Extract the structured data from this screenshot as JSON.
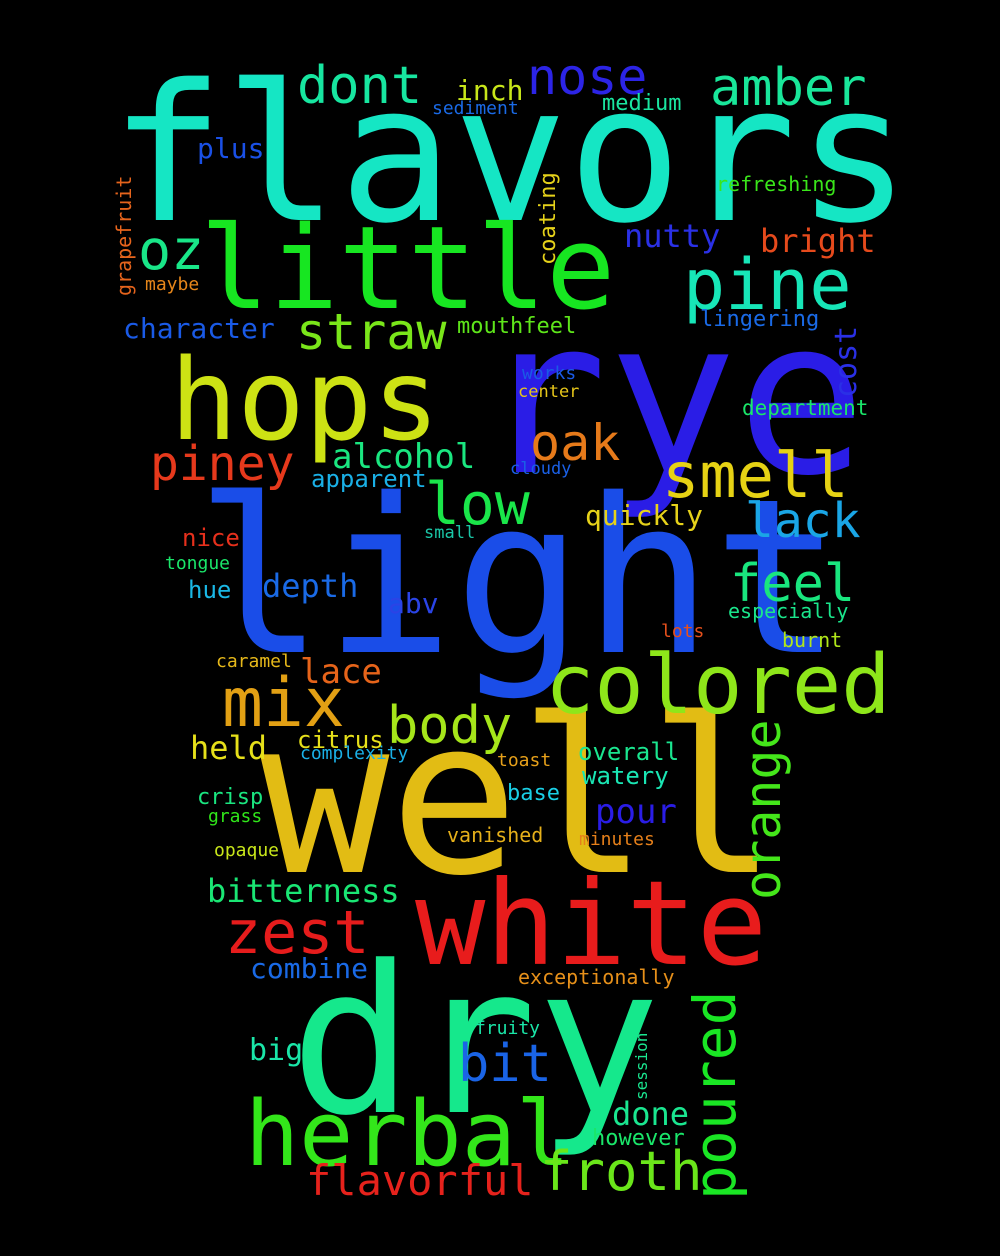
{
  "words": [
    {
      "id": "flavors",
      "text": "flavors",
      "color": "#15e6c4"
    },
    {
      "id": "rye",
      "text": "rye",
      "color": "#2a1de6"
    },
    {
      "id": "light",
      "text": "light",
      "color": "#1a4de8"
    },
    {
      "id": "well",
      "text": "well",
      "color": "#e2bc14"
    },
    {
      "id": "dry",
      "text": "dry",
      "color": "#15e88c"
    },
    {
      "id": "little",
      "text": "little",
      "color": "#17e621"
    },
    {
      "id": "white",
      "text": "white",
      "color": "#e81c1c"
    },
    {
      "id": "hops",
      "text": "hops",
      "color": "#cde214"
    },
    {
      "id": "herbal",
      "text": "herbal",
      "color": "#33e61a"
    },
    {
      "id": "colored",
      "text": "colored",
      "color": "#8ee61a"
    },
    {
      "id": "pine",
      "text": "pine",
      "color": "#17e6b8"
    },
    {
      "id": "mix",
      "text": "mix",
      "color": "#e2a014"
    },
    {
      "id": "nose",
      "text": "nose",
      "color": "#2c24e6"
    },
    {
      "id": "amber",
      "text": "amber",
      "color": "#19e69a"
    },
    {
      "id": "dont",
      "text": "dont",
      "color": "#17e6a0"
    },
    {
      "id": "oz",
      "text": "oz",
      "color": "#19e688"
    },
    {
      "id": "straw",
      "text": "straw",
      "color": "#7ae61a"
    },
    {
      "id": "smell",
      "text": "smell",
      "color": "#e6d214"
    },
    {
      "id": "piney",
      "text": "piney",
      "color": "#e6391c"
    },
    {
      "id": "low",
      "text": "low",
      "color": "#1ae64a"
    },
    {
      "id": "oak",
      "text": "oak",
      "color": "#e67a1a"
    },
    {
      "id": "lack",
      "text": "lack",
      "color": "#1aa6e6"
    },
    {
      "id": "feel",
      "text": "feel",
      "color": "#19e67e"
    },
    {
      "id": "body",
      "text": "body",
      "color": "#a6e61a"
    },
    {
      "id": "zest",
      "text": "zest",
      "color": "#e61c1c"
    },
    {
      "id": "bit",
      "text": "bit",
      "color": "#1a64e6"
    },
    {
      "id": "froth",
      "text": "froth",
      "color": "#6ae61a"
    },
    {
      "id": "orange",
      "text": "orange",
      "color": "#44e61a"
    },
    {
      "id": "poured",
      "text": "poured",
      "color": "#1ae624"
    },
    {
      "id": "flavorful",
      "text": "flavorful",
      "color": "#e6221c"
    },
    {
      "id": "bitterness",
      "text": "bitterness",
      "color": "#1ae674"
    },
    {
      "id": "nutty",
      "text": "nutty",
      "color": "#2a30e6"
    },
    {
      "id": "bright",
      "text": "bright",
      "color": "#e64a1c"
    },
    {
      "id": "inch",
      "text": "inch",
      "color": "#c8e61a"
    },
    {
      "id": "medium",
      "text": "medium",
      "color": "#1ae6a0"
    },
    {
      "id": "sediment",
      "text": "sediment",
      "color": "#1a6ae6"
    },
    {
      "id": "plus",
      "text": "plus",
      "color": "#1a50e6"
    },
    {
      "id": "refreshing",
      "text": "refreshing",
      "color": "#3ae61a"
    },
    {
      "id": "coating",
      "text": "coating",
      "color": "#e6d21a"
    },
    {
      "id": "grapefruit",
      "text": "grapefruit",
      "color": "#e6641c"
    },
    {
      "id": "maybe",
      "text": "maybe",
      "color": "#e6861a"
    },
    {
      "id": "character",
      "text": "character",
      "color": "#1a5ae6"
    },
    {
      "id": "mouthfeel",
      "text": "mouthfeel",
      "color": "#5ee61a"
    },
    {
      "id": "lingering",
      "text": "lingering",
      "color": "#1a6ae6"
    },
    {
      "id": "cost",
      "text": "cost",
      "color": "#2a30e6"
    },
    {
      "id": "works",
      "text": "works",
      "color": "#1a5ae6"
    },
    {
      "id": "center",
      "text": "center",
      "color": "#e6c61a"
    },
    {
      "id": "department",
      "text": "department",
      "color": "#1ae66a"
    },
    {
      "id": "alcohol",
      "text": "alcohol",
      "color": "#1ae680"
    },
    {
      "id": "cloudy",
      "text": "cloudy",
      "color": "#1a60e6"
    },
    {
      "id": "apparent",
      "text": "apparent",
      "color": "#1ab0e6"
    },
    {
      "id": "quickly",
      "text": "quickly",
      "color": "#e6d21a"
    },
    {
      "id": "nice",
      "text": "nice",
      "color": "#e6301c"
    },
    {
      "id": "small",
      "text": "small",
      "color": "#1ac6a6"
    },
    {
      "id": "tongue",
      "text": "tongue",
      "color": "#1ae66a"
    },
    {
      "id": "depth",
      "text": "depth",
      "color": "#1a6ae6"
    },
    {
      "id": "hue",
      "text": "hue",
      "color": "#1ab8e6"
    },
    {
      "id": "abv",
      "text": "abv",
      "color": "#2a44e6"
    },
    {
      "id": "especially",
      "text": "especially",
      "color": "#1ae68c"
    },
    {
      "id": "lots",
      "text": "lots",
      "color": "#e6501c"
    },
    {
      "id": "burnt",
      "text": "burnt",
      "color": "#b0e61a"
    },
    {
      "id": "caramel",
      "text": "caramel",
      "color": "#e6b81a"
    },
    {
      "id": "lace",
      "text": "lace",
      "color": "#e6641a"
    },
    {
      "id": "held",
      "text": "held",
      "color": "#e6e01a"
    },
    {
      "id": "citrus",
      "text": "citrus",
      "color": "#e6e01a"
    },
    {
      "id": "complexity",
      "text": "complexity",
      "color": "#1ab0e6"
    },
    {
      "id": "overall",
      "text": "overall",
      "color": "#1ae690"
    },
    {
      "id": "toast",
      "text": "toast",
      "color": "#e6a01a"
    },
    {
      "id": "watery",
      "text": "watery",
      "color": "#1ae6b4"
    },
    {
      "id": "crisp",
      "text": "crisp",
      "color": "#1ae680"
    },
    {
      "id": "grass",
      "text": "grass",
      "color": "#30e61a"
    },
    {
      "id": "base",
      "text": "base",
      "color": "#1ad0e6"
    },
    {
      "id": "pour",
      "text": "pour",
      "color": "#2a1de6"
    },
    {
      "id": "opaque",
      "text": "opaque",
      "color": "#c8e61a"
    },
    {
      "id": "vanished",
      "text": "vanished",
      "color": "#e6b01a"
    },
    {
      "id": "minutes",
      "text": "minutes",
      "color": "#e6801a"
    },
    {
      "id": "combine",
      "text": "combine",
      "color": "#1a6ae6"
    },
    {
      "id": "exceptionally",
      "text": "exceptionally",
      "color": "#e6901a"
    },
    {
      "id": "fruity",
      "text": "fruity",
      "color": "#1ae6a8"
    },
    {
      "id": "session",
      "text": "session",
      "color": "#1ae690"
    },
    {
      "id": "big",
      "text": "big",
      "color": "#1ae6a8"
    },
    {
      "id": "done",
      "text": "done",
      "color": "#1ae690"
    },
    {
      "id": "however",
      "text": "however",
      "color": "#1ae66a"
    }
  ]
}
